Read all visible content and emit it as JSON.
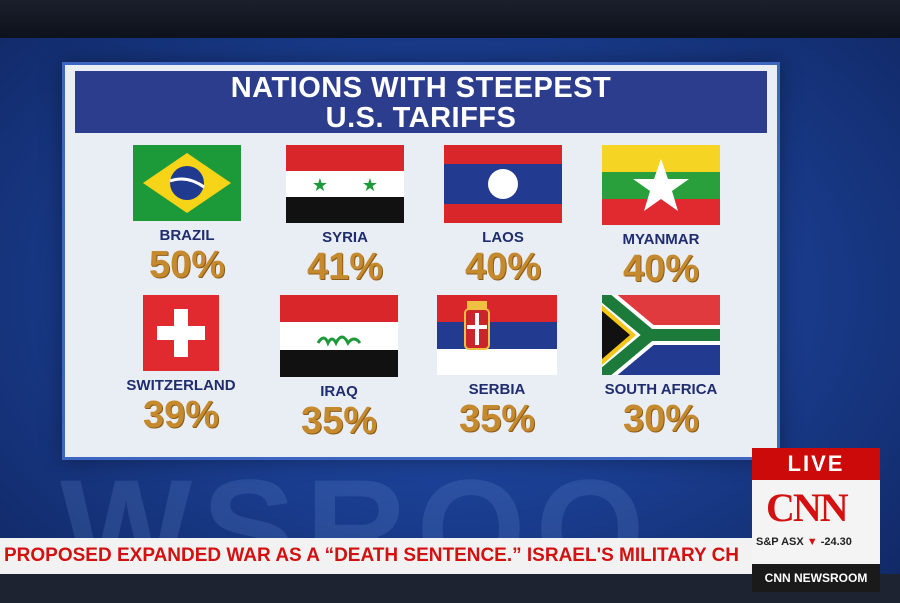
{
  "title_line1": "NATIONS WITH STEEPEST",
  "title_line2": "U.S. TARIFFS",
  "countries": [
    {
      "name": "BRAZIL",
      "rate": "50%"
    },
    {
      "name": "SYRIA",
      "rate": "41%"
    },
    {
      "name": "LAOS",
      "rate": "40%"
    },
    {
      "name": "MYANMAR",
      "rate": "40%"
    },
    {
      "name": "SWITZERLAND",
      "rate": "39%"
    },
    {
      "name": "IRAQ",
      "rate": "35%"
    },
    {
      "name": "SERBIA",
      "rate": "35%"
    },
    {
      "name": "SOUTH AFRICA",
      "rate": "30%"
    }
  ],
  "live_label": "LIVE",
  "network_logo": "CNN",
  "market": {
    "index": "S&P ASX",
    "change": "-24.30",
    "direction_icon": "down-triangle-icon"
  },
  "crawl_text": "PROPOSED EXPANDED WAR AS A “DEATH SENTENCE.” ISRAEL'S MILITARY CH",
  "program_label": "CNN NEWSROOM",
  "background_word": "WSROO",
  "colors": {
    "accent_red": "#d31111",
    "title_bg": "#2c3d8e",
    "value_gold": "#c68a2e"
  }
}
